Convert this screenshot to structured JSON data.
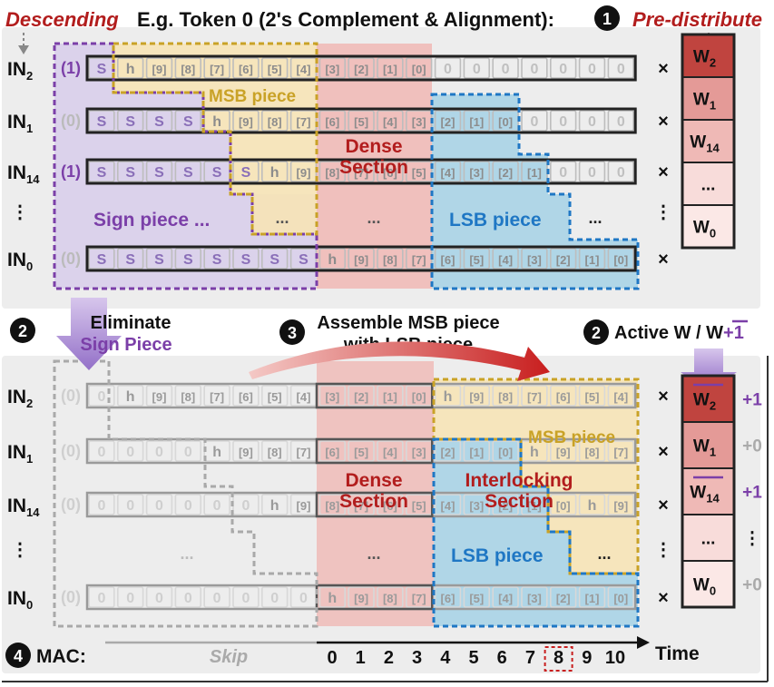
{
  "title": "E.g. Token 0 (2's Complement & Alignment):",
  "descending": "Descending",
  "pre_distribute": "Pre-distribute",
  "step_numbers": {
    "one": "1",
    "two": "2",
    "three": "3",
    "four": "4"
  },
  "row_labels": {
    "r0": {
      "base": "IN",
      "sub": "2"
    },
    "r1": {
      "base": "IN",
      "sub": "1"
    },
    "r2": {
      "base": "IN",
      "sub": "14"
    },
    "r3": {
      "base": ""
    },
    "r4": {
      "base": "IN",
      "sub": "0"
    }
  },
  "vdots": "⋮",
  "times": "×",
  "ellipsis": "...",
  "top_rows": [
    {
      "bit": "(1)",
      "cells": [
        "S",
        "h",
        "9",
        "8",
        "7",
        "6",
        "5",
        "4",
        "3",
        "2",
        "1",
        "0",
        "0",
        "0",
        "0",
        "0",
        "0",
        "0",
        "0"
      ]
    },
    {
      "bit": "(0)",
      "cells": [
        "S",
        "S",
        "S",
        "S",
        "h",
        "9",
        "8",
        "7",
        "6",
        "5",
        "4",
        "3",
        "2",
        "1",
        "0",
        "0",
        "0",
        "0",
        "0"
      ]
    },
    {
      "bit": "(1)",
      "cells": [
        "S",
        "S",
        "S",
        "S",
        "S",
        "S",
        "h",
        "9",
        "8",
        "7",
        "6",
        "5",
        "4",
        "3",
        "2",
        "1",
        "0",
        "0",
        "0"
      ]
    },
    null,
    {
      "bit": "(0)",
      "cells": [
        "S",
        "S",
        "S",
        "S",
        "S",
        "S",
        "S",
        "S",
        "h",
        "9",
        "8",
        "7",
        "6",
        "5",
        "4",
        "3",
        "2",
        "1",
        "0"
      ]
    }
  ],
  "bottom_rows": [
    {
      "bit": "(0)",
      "cells": [
        "0",
        "h",
        "9",
        "8",
        "7",
        "6",
        "5",
        "4",
        "3",
        "2",
        "1",
        "0",
        "h",
        "9",
        "8",
        "7",
        "6",
        "5",
        "4"
      ]
    },
    {
      "bit": "(0)",
      "cells": [
        "0",
        "0",
        "0",
        "0",
        "h",
        "9",
        "8",
        "7",
        "6",
        "5",
        "4",
        "3",
        "2",
        "1",
        "0",
        "h",
        "9",
        "8",
        "7"
      ]
    },
    {
      "bit": "(0)",
      "cells": [
        "0",
        "0",
        "0",
        "0",
        "0",
        "0",
        "h",
        "9",
        "8",
        "7",
        "6",
        "5",
        "4",
        "3",
        "2",
        "1",
        "0",
        "h",
        "9"
      ]
    },
    null,
    {
      "bit": "(0)",
      "cells": [
        "0",
        "0",
        "0",
        "0",
        "0",
        "0",
        "0",
        "0",
        "h",
        "9",
        "8",
        "7",
        "6",
        "5",
        "4",
        "3",
        "2",
        "1",
        "0"
      ]
    }
  ],
  "weights_top": [
    {
      "base": "W",
      "sub": "2",
      "color": "#c0443f",
      "over": false
    },
    {
      "base": "W",
      "sub": "1",
      "color": "#e49a97",
      "over": false
    },
    {
      "base": "W",
      "sub": "14",
      "color": "#efb9b6",
      "over": false
    },
    {
      "base": "...",
      "sub": "",
      "color": "#f8dcda",
      "over": false
    },
    {
      "base": "W",
      "sub": "0",
      "color": "#fbe8e6",
      "over": false
    }
  ],
  "weights_bottom": [
    {
      "base": "W",
      "sub": "2",
      "color": "#c0443f",
      "over": true,
      "corr": "+1"
    },
    {
      "base": "W",
      "sub": "1",
      "color": "#e49a97",
      "over": false,
      "corr": "+0"
    },
    {
      "base": "W",
      "sub": "14",
      "color": "#efb9b6",
      "over": true,
      "corr": "+1"
    },
    {
      "base": "...",
      "sub": "",
      "color": "#f8dcda",
      "over": false,
      "corr": "⋮"
    },
    {
      "base": "W",
      "sub": "0",
      "color": "#fbe8e6",
      "over": false,
      "corr": "+0"
    }
  ],
  "labels": {
    "msb_piece": "MSB piece",
    "sign_piece": "Sign piece ...",
    "dense_section": [
      "Dense",
      "Section"
    ],
    "lsb_piece": "LSB piece",
    "interlocking_section": [
      "Interlocking",
      "Section"
    ],
    "eliminate": [
      "Eliminate",
      "Sign Piece"
    ],
    "assemble": [
      "Assemble MSB piece",
      "with LSB piece"
    ],
    "active_w": {
      "prefix": "Active W / ",
      "w": "W",
      "plus": "+1"
    },
    "mac": "MAC:",
    "skip": "Skip",
    "time": "Time"
  },
  "timeline": [
    "0",
    "1",
    "2",
    "3",
    "4",
    "5",
    "6",
    "7",
    "8",
    "9",
    "10"
  ],
  "highlight_tick": "8",
  "colors": {
    "purple": "#7b3fa8",
    "gold": "#c9a227",
    "blue": "#1f77c4",
    "dark_red": "#b21d1d",
    "gray": "#9a9a9a"
  }
}
